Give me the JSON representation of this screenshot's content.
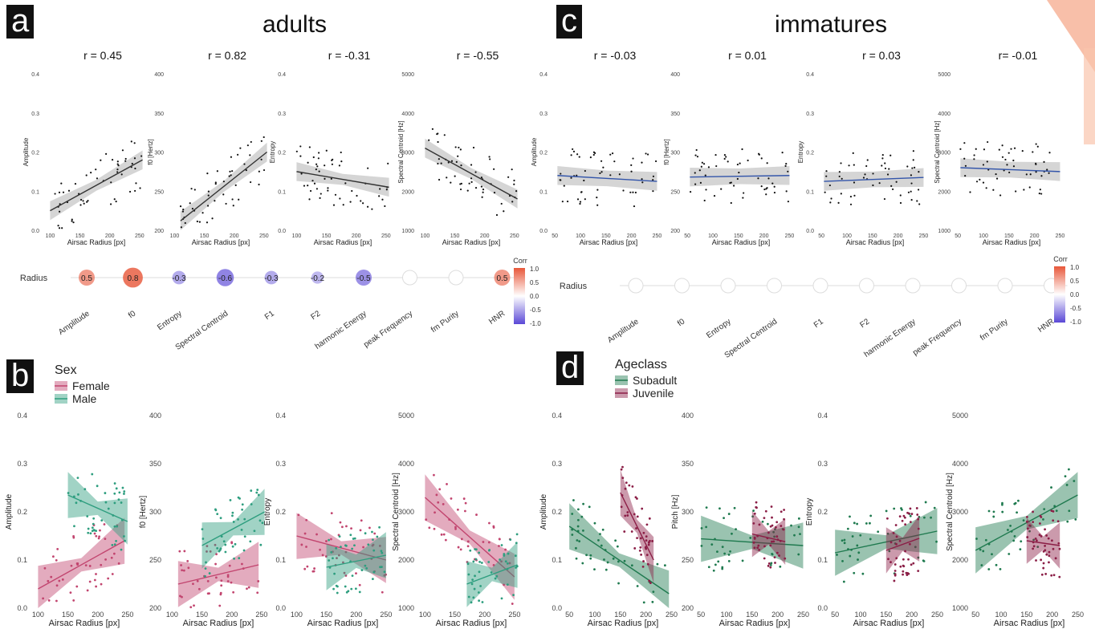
{
  "labels": {
    "a": "a",
    "b": "b",
    "c": "c",
    "d": "d"
  },
  "sections": {
    "adults": "adults",
    "immatures": "immatures"
  },
  "x_label": "Airsac Radius [px]",
  "corr": {
    "row_label": "Radius",
    "legend_title": "Corr",
    "legend_ticks": [
      "1.0",
      "0.5",
      "0.0",
      "-0.5",
      "-1.0"
    ],
    "features": [
      "Amplitude",
      "f0",
      "Entropy",
      "Spectral Centroid",
      "F1",
      "F2",
      "harmonic Energy",
      "peak Frequency",
      "fm Purity",
      "HNR"
    ]
  },
  "legend_b": {
    "title": "Sex",
    "items": [
      {
        "name": "Female",
        "color": "#c2456f"
      },
      {
        "name": "Male",
        "color": "#2e9e7f"
      }
    ]
  },
  "legend_d": {
    "title": "Ageclass",
    "items": [
      {
        "name": "Subadult",
        "color": "#1f7a4f"
      },
      {
        "name": "Juvenile",
        "color": "#8b1e46"
      }
    ]
  },
  "colors": {
    "female": "#c2456f",
    "male": "#2e9e7f",
    "subadult": "#1f7a4f",
    "juvenile": "#8b1e46",
    "fit_a": "#333333",
    "fit_c": "#3355aa",
    "corr_pos": "#e8573a",
    "corr_neg": "#5a48d6"
  },
  "chart_data": [
    {
      "panel": "a",
      "type": "scatter",
      "title": "r = 0.45",
      "ylabel": "Amplitude",
      "xlabel": "Airsac Radius [px]",
      "xlim": [
        90,
        265
      ],
      "ylim": [
        0,
        0.4
      ],
      "xticks": [
        100,
        150,
        200,
        250
      ],
      "yticks": [
        0.0,
        0.1,
        0.2,
        0.3,
        0.4
      ],
      "fit": [
        [
          100,
          0.05
        ],
        [
          255,
          0.18
        ]
      ]
    },
    {
      "panel": "a",
      "type": "scatter",
      "title": "r = 0.82",
      "ylabel": "f0 [Hertz]",
      "xlabel": "Airsac Radius [px]",
      "xlim": [
        90,
        265
      ],
      "ylim": [
        200,
        400
      ],
      "xticks": [
        100,
        150,
        200,
        250
      ],
      "yticks": [
        200,
        250,
        300,
        350,
        400
      ],
      "fit": [
        [
          110,
          212
        ],
        [
          255,
          300
        ]
      ]
    },
    {
      "panel": "a",
      "type": "scatter",
      "title": "r = -0.31",
      "ylabel": "Entropy",
      "xlabel": "Airsac Radius [px]",
      "xlim": [
        90,
        265
      ],
      "ylim": [
        0,
        0.4
      ],
      "xticks": [
        100,
        150,
        200,
        250
      ],
      "yticks": [
        0.0,
        0.1,
        0.2,
        0.3,
        0.4
      ],
      "fit": [
        [
          100,
          0.15
        ],
        [
          255,
          0.11
        ]
      ]
    },
    {
      "panel": "a",
      "type": "scatter",
      "title": "r = -0.55",
      "ylabel": "Spectral Centroid [Hz]",
      "xlabel": "Airsac Radius [px]",
      "xlim": [
        90,
        265
      ],
      "ylim": [
        1000,
        5000
      ],
      "xticks": [
        100,
        150,
        200,
        250
      ],
      "yticks": [
        1000,
        2000,
        3000,
        4000,
        5000
      ],
      "fit": [
        [
          100,
          3100
        ],
        [
          255,
          1800
        ]
      ]
    },
    {
      "panel": "c",
      "type": "scatter",
      "title": "r = -0.03",
      "ylabel": "Amplitude",
      "xlabel": "Airsac Radius [px]",
      "xlim": [
        45,
        265
      ],
      "ylim": [
        0,
        0.4
      ],
      "xticks": [
        50,
        100,
        150,
        200,
        250
      ],
      "yticks": [
        0.0,
        0.1,
        0.2,
        0.3,
        0.4
      ],
      "fit": [
        [
          55,
          0.14
        ],
        [
          250,
          0.125
        ]
      ]
    },
    {
      "panel": "c",
      "type": "scatter",
      "title": "r = 0.01",
      "ylabel": "f0 [Hertz]",
      "xlabel": "Airsac Radius [px]",
      "xlim": [
        45,
        265
      ],
      "ylim": [
        200,
        400
      ],
      "xticks": [
        50,
        100,
        150,
        200,
        250
      ],
      "yticks": [
        200,
        250,
        300,
        350,
        400
      ],
      "fit": [
        [
          55,
          268
        ],
        [
          250,
          270
        ]
      ]
    },
    {
      "panel": "c",
      "type": "scatter",
      "title": "r = 0.03",
      "ylabel": "Entropy",
      "xlabel": "Airsac Radius [px]",
      "xlim": [
        45,
        265
      ],
      "ylim": [
        0,
        0.4
      ],
      "xticks": [
        50,
        100,
        150,
        200,
        250
      ],
      "yticks": [
        0.0,
        0.1,
        0.2,
        0.3,
        0.4
      ],
      "fit": [
        [
          55,
          0.125
        ],
        [
          250,
          0.135
        ]
      ]
    },
    {
      "panel": "c",
      "type": "scatter",
      "title": "r= -0.01",
      "ylabel": "Spectral Centroid [Hz]",
      "xlabel": "Airsac Radius [px]",
      "xlim": [
        45,
        265
      ],
      "ylim": [
        1000,
        5000
      ],
      "xticks": [
        50,
        100,
        150,
        200,
        250
      ],
      "yticks": [
        1000,
        2000,
        3000,
        4000,
        5000
      ],
      "fit": [
        [
          55,
          2600
        ],
        [
          250,
          2500
        ]
      ]
    },
    {
      "panel": "b",
      "type": "scatter",
      "title": "",
      "ylabel": "Amplitude",
      "xlabel": "Airsac Radius [px]",
      "xlim": [
        90,
        265
      ],
      "ylim": [
        0,
        0.4
      ],
      "xticks": [
        100,
        150,
        200,
        250
      ],
      "yticks": [
        0.0,
        0.1,
        0.2,
        0.3,
        0.4
      ],
      "series": [
        {
          "name": "Female",
          "fit": [
            [
              100,
              0.04
            ],
            [
              245,
              0.14
            ]
          ]
        },
        {
          "name": "Male",
          "fit": [
            [
              150,
              0.235
            ],
            [
              250,
              0.18
            ]
          ]
        }
      ]
    },
    {
      "panel": "b",
      "type": "scatter",
      "title": "",
      "ylabel": "f0 [Hertz]",
      "xlabel": "Airsac Radius [px]",
      "xlim": [
        90,
        265
      ],
      "ylim": [
        200,
        400
      ],
      "xticks": [
        100,
        150,
        200,
        250
      ],
      "yticks": [
        200,
        250,
        300,
        350,
        400
      ],
      "series": [
        {
          "name": "Female",
          "fit": [
            [
              110,
              225
            ],
            [
              245,
              245
            ]
          ]
        },
        {
          "name": "Male",
          "fit": [
            [
              150,
              265
            ],
            [
              255,
              300
            ]
          ]
        }
      ]
    },
    {
      "panel": "b",
      "type": "scatter",
      "title": "",
      "ylabel": "Entropy",
      "xlabel": "Airsac Radius [px]",
      "xlim": [
        90,
        265
      ],
      "ylim": [
        0,
        0.4
      ],
      "xticks": [
        100,
        150,
        200,
        250
      ],
      "yticks": [
        0.0,
        0.1,
        0.2,
        0.3,
        0.4
      ],
      "series": [
        {
          "name": "Female",
          "fit": [
            [
              100,
              0.15
            ],
            [
              250,
              0.1
            ]
          ]
        },
        {
          "name": "Male",
          "fit": [
            [
              150,
              0.085
            ],
            [
              250,
              0.11
            ]
          ]
        }
      ]
    },
    {
      "panel": "b",
      "type": "scatter",
      "title": "",
      "ylabel": "Spectral Centroid [Hz]",
      "xlabel": "Airsac Radius [px]",
      "xlim": [
        90,
        265
      ],
      "ylim": [
        1000,
        5000
      ],
      "xticks": [
        100,
        150,
        200,
        250
      ],
      "yticks": [
        1000,
        2000,
        3000,
        4000,
        5000
      ],
      "series": [
        {
          "name": "Female",
          "fit": [
            [
              100,
              3300
            ],
            [
              250,
              1650
            ]
          ]
        },
        {
          "name": "Male",
          "fit": [
            [
              170,
              1500
            ],
            [
              255,
              1900
            ]
          ]
        }
      ]
    },
    {
      "panel": "d",
      "type": "scatter",
      "title": "",
      "ylabel": "Amplitude",
      "xlabel": "Airsac Radius [px]",
      "xlim": [
        45,
        265
      ],
      "ylim": [
        0,
        0.4
      ],
      "xticks": [
        50,
        100,
        150,
        200,
        250
      ],
      "yticks": [
        0.0,
        0.1,
        0.2,
        0.3,
        0.4
      ],
      "series": [
        {
          "name": "Subadult",
          "fit": [
            [
              50,
              0.17
            ],
            [
              245,
              0.03
            ]
          ]
        },
        {
          "name": "Juvenile",
          "fit": [
            [
              150,
              0.24
            ],
            [
              215,
              0.1
            ]
          ]
        }
      ]
    },
    {
      "panel": "d",
      "type": "scatter",
      "title": "",
      "ylabel": "Pitch [Hz]",
      "xlabel": "Airsac Radius [px]",
      "xlim": [
        45,
        265
      ],
      "ylim": [
        200,
        400
      ],
      "xticks": [
        50,
        100,
        150,
        200,
        250
      ],
      "yticks": [
        200,
        250,
        300,
        350,
        400
      ],
      "series": [
        {
          "name": "Subadult",
          "fit": [
            [
              50,
              272
            ],
            [
              250,
              265
            ]
          ]
        },
        {
          "name": "Juvenile",
          "fit": [
            [
              150,
              277
            ],
            [
              215,
              269
            ]
          ]
        }
      ]
    },
    {
      "panel": "d",
      "type": "scatter",
      "title": "",
      "ylabel": "Entropy",
      "xlabel": "Airsac Radius [px]",
      "xlim": [
        45,
        265
      ],
      "ylim": [
        0,
        0.4
      ],
      "xticks": [
        50,
        100,
        150,
        200,
        250
      ],
      "yticks": [
        0.0,
        0.1,
        0.2,
        0.3,
        0.4
      ],
      "series": [
        {
          "name": "Subadult",
          "fit": [
            [
              50,
              0.115
            ],
            [
              250,
              0.16
            ]
          ]
        },
        {
          "name": "Juvenile",
          "fit": [
            [
              150,
              0.12
            ],
            [
              215,
              0.145
            ]
          ]
        }
      ]
    },
    {
      "panel": "d",
      "type": "scatter",
      "title": "",
      "ylabel": "Spectral Centroid [Hz]",
      "xlabel": "Airsac Radius [px]",
      "xlim": [
        45,
        265
      ],
      "ylim": [
        1000,
        5000
      ],
      "xticks": [
        50,
        100,
        150,
        200,
        250
      ],
      "yticks": [
        1000,
        2000,
        3000,
        4000,
        5000
      ],
      "series": [
        {
          "name": "Subadult",
          "fit": [
            [
              50,
              2200
            ],
            [
              250,
              3350
            ]
          ]
        },
        {
          "name": "Juvenile",
          "fit": [
            [
              150,
              2400
            ],
            [
              215,
              2300
            ]
          ]
        }
      ]
    },
    {
      "panel": "a",
      "type": "heatmap",
      "row": "Radius",
      "columns": [
        "Amplitude",
        "f0",
        "Entropy",
        "Spectral Centroid",
        "F1",
        "F2",
        "harmonic Energy",
        "peak Frequency",
        "fm Purity",
        "HNR"
      ],
      "values": [
        0.5,
        0.8,
        -0.3,
        -0.6,
        -0.3,
        -0.2,
        -0.5,
        null,
        null,
        0.5
      ]
    },
    {
      "panel": "c",
      "type": "heatmap",
      "row": "Radius",
      "columns": [
        "Amplitude",
        "f0",
        "Entropy",
        "Spectral Centroid",
        "F1",
        "F2",
        "harmonic Energy",
        "peak Frequency",
        "fm Purity",
        "HNR"
      ],
      "values": [
        null,
        null,
        null,
        null,
        null,
        null,
        null,
        null,
        null,
        null
      ]
    }
  ]
}
